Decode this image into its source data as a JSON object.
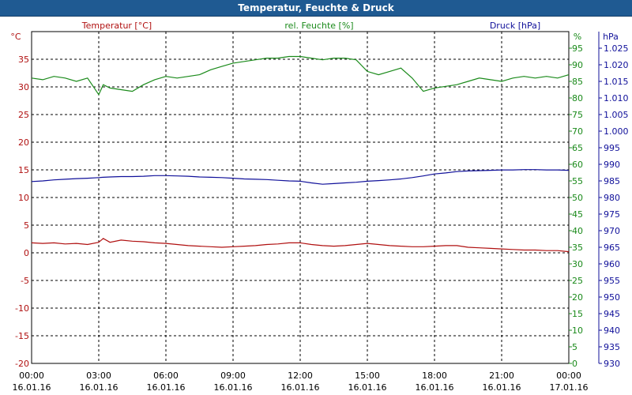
{
  "window": {
    "title": "Temperatur, Feuchte & Druck"
  },
  "chart_data": {
    "type": "line",
    "title": "Temperatur, Feuchte & Druck",
    "grid": true,
    "x_ticks": [
      {
        "time": "00:00",
        "date": "16.01.16"
      },
      {
        "time": "03:00",
        "date": "16.01.16"
      },
      {
        "time": "06:00",
        "date": "16.01.16"
      },
      {
        "time": "09:00",
        "date": "16.01.16"
      },
      {
        "time": "12:00",
        "date": "16.01.16"
      },
      {
        "time": "15:00",
        "date": "16.01.16"
      },
      {
        "time": "18:00",
        "date": "16.01.16"
      },
      {
        "time": "21:00",
        "date": "16.01.16"
      },
      {
        "time": "00:00",
        "date": "17.01.16"
      }
    ],
    "x_hours": [
      0,
      0.5,
      1,
      1.5,
      2,
      2.5,
      3,
      3.2,
      3.5,
      4,
      4.5,
      5,
      5.5,
      6,
      6.5,
      7,
      7.5,
      8,
      8.5,
      9,
      9.5,
      10,
      10.5,
      11,
      11.5,
      12,
      12.5,
      13,
      13.5,
      14,
      14.5,
      15,
      15.5,
      16,
      16.5,
      17,
      17.5,
      18,
      18.5,
      19,
      19.5,
      20,
      20.5,
      21,
      21.5,
      22,
      22.5,
      23,
      23.5,
      24
    ],
    "axes": {
      "temperature": {
        "label": "Temperatur [°C]",
        "unit": "°C",
        "min": -20,
        "max": 40,
        "ticks": [
          -20,
          -15,
          -10,
          -5,
          0,
          5,
          10,
          15,
          20,
          25,
          30,
          35
        ],
        "color": "#b01010"
      },
      "humidity": {
        "label": "rel. Feuchte [%]",
        "unit": "%",
        "min": 0,
        "max": 100,
        "ticks": [
          0,
          5,
          10,
          15,
          20,
          25,
          30,
          35,
          40,
          45,
          50,
          55,
          60,
          65,
          70,
          75,
          80,
          85,
          90,
          95
        ],
        "color": "#1a8a1a"
      },
      "pressure": {
        "label": "Druck [hPa]",
        "unit": "hPa",
        "min": 930,
        "max": 1030,
        "ticks": [
          "930",
          "935",
          "940",
          "945",
          "950",
          "955",
          "960",
          "965",
          "970",
          "975",
          "980",
          "985",
          "990",
          "995",
          "1.000",
          "1.005",
          "1.010",
          "1.015",
          "1.020",
          "1.025"
        ],
        "color": "#10109a"
      }
    },
    "series": [
      {
        "name": "Temperatur [°C]",
        "axis": "temperature",
        "color": "#b01010",
        "values": [
          1.8,
          1.7,
          1.8,
          1.6,
          1.7,
          1.5,
          1.9,
          2.6,
          1.9,
          2.3,
          2.1,
          2.0,
          1.8,
          1.7,
          1.5,
          1.3,
          1.2,
          1.1,
          1.0,
          1.1,
          1.2,
          1.3,
          1.5,
          1.6,
          1.8,
          1.8,
          1.5,
          1.3,
          1.2,
          1.3,
          1.5,
          1.7,
          1.5,
          1.3,
          1.2,
          1.1,
          1.1,
          1.2,
          1.3,
          1.3,
          1.0,
          0.9,
          0.8,
          0.7,
          0.6,
          0.5,
          0.5,
          0.4,
          0.4,
          0.2
        ]
      },
      {
        "name": "rel. Feuchte [%]",
        "axis": "humidity",
        "color": "#1a8a1a",
        "values": [
          86,
          85.5,
          86.5,
          86,
          85,
          86,
          81,
          84,
          83,
          82.5,
          82,
          84,
          85.5,
          86.5,
          86,
          86.5,
          87,
          88.5,
          89.5,
          90.5,
          91,
          91.5,
          92,
          92,
          92.5,
          92.5,
          92,
          91.5,
          92,
          92,
          91.5,
          88,
          87,
          88,
          89,
          86,
          82,
          83,
          83.5,
          84,
          85,
          86,
          85.5,
          85,
          86,
          86.5,
          86,
          86.5,
          86,
          87
        ]
      },
      {
        "name": "Druck [hPa]",
        "axis": "pressure",
        "color": "#10109a",
        "values": [
          984.8,
          985,
          985.3,
          985.5,
          985.7,
          985.8,
          986,
          986.1,
          986.2,
          986.3,
          986.3,
          986.4,
          986.6,
          986.6,
          986.5,
          986.4,
          986.2,
          986.1,
          986,
          985.8,
          985.6,
          985.5,
          985.4,
          985.2,
          985,
          984.9,
          984.4,
          984,
          984.2,
          984.4,
          984.6,
          984.9,
          985.1,
          985.3,
          985.6,
          986,
          986.5,
          987.1,
          987.4,
          987.8,
          988,
          988.1,
          988.2,
          988.3,
          988.3,
          988.4,
          988.4,
          988.3,
          988.3,
          988.2
        ]
      }
    ]
  }
}
